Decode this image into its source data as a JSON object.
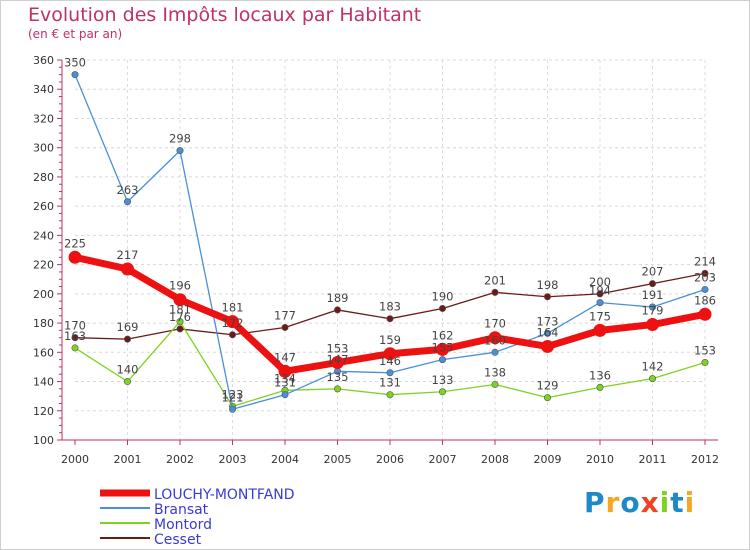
{
  "chart_data": {
    "type": "line",
    "title": "Evolution des Impôts locaux par Habitant",
    "subtitle": "(en € et par an)",
    "xlabel": "",
    "ylabel": "",
    "x": [
      "2000",
      "2001",
      "2002",
      "2003",
      "2004",
      "2005",
      "2006",
      "2007",
      "2008",
      "2009",
      "2010",
      "2011",
      "2012"
    ],
    "ylim": [
      100,
      360
    ],
    "yticks": [
      100,
      120,
      140,
      160,
      180,
      200,
      220,
      240,
      260,
      280,
      300,
      320,
      340,
      360
    ],
    "legend_position": "bottom-left",
    "series": [
      {
        "name": "LOUCHY-MONTFAND",
        "color": "#ee1111",
        "values": [
          225,
          217,
          196,
          181,
          147,
          153,
          159,
          162,
          170,
          164,
          175,
          179,
          186
        ],
        "labels": [
          "225",
          "217",
          "196",
          "181",
          "147",
          "153",
          "159",
          "162",
          "170",
          "164",
          "175",
          "179",
          "186"
        ]
      },
      {
        "name": "Bransat",
        "color": "#4a90d9",
        "values": [
          350,
          263,
          298,
          121,
          131,
          147,
          146,
          155,
          160,
          173,
          194,
          191,
          203
        ],
        "labels": [
          "350",
          "263",
          "298",
          "121",
          "131",
          "147",
          "146",
          "155",
          "160",
          "173",
          "194",
          "191",
          "203"
        ]
      },
      {
        "name": "Montord",
        "color": "#7ed321",
        "values": [
          163,
          140,
          181,
          123,
          134,
          135,
          131,
          133,
          138,
          129,
          136,
          142,
          153
        ],
        "labels": [
          "163",
          "140",
          "181",
          "123",
          "134",
          "135",
          "131",
          "133",
          "138",
          "129",
          "136",
          "142",
          "153"
        ]
      },
      {
        "name": "Cesset",
        "color": "#6b1a1a",
        "values": [
          170,
          169,
          176,
          172,
          177,
          189,
          183,
          190,
          201,
          198,
          200,
          207,
          214
        ],
        "labels": [
          "170",
          "169",
          "176",
          "172",
          "177",
          "189",
          "183",
          "190",
          "201",
          "198",
          "200",
          "207",
          "214"
        ]
      }
    ]
  },
  "branding": {
    "logo_text": "Proxiti",
    "logo_letters": [
      {
        "ch": "P",
        "color": "#1e88c8"
      },
      {
        "ch": "r",
        "color": "#f5a623"
      },
      {
        "ch": "o",
        "color": "#1e88c8"
      },
      {
        "ch": "x",
        "color": "#ee4422"
      },
      {
        "ch": "i",
        "color": "#7ed321"
      },
      {
        "ch": "t",
        "color": "#1e88c8"
      },
      {
        "ch": "i",
        "color": "#f5a623"
      }
    ]
  }
}
